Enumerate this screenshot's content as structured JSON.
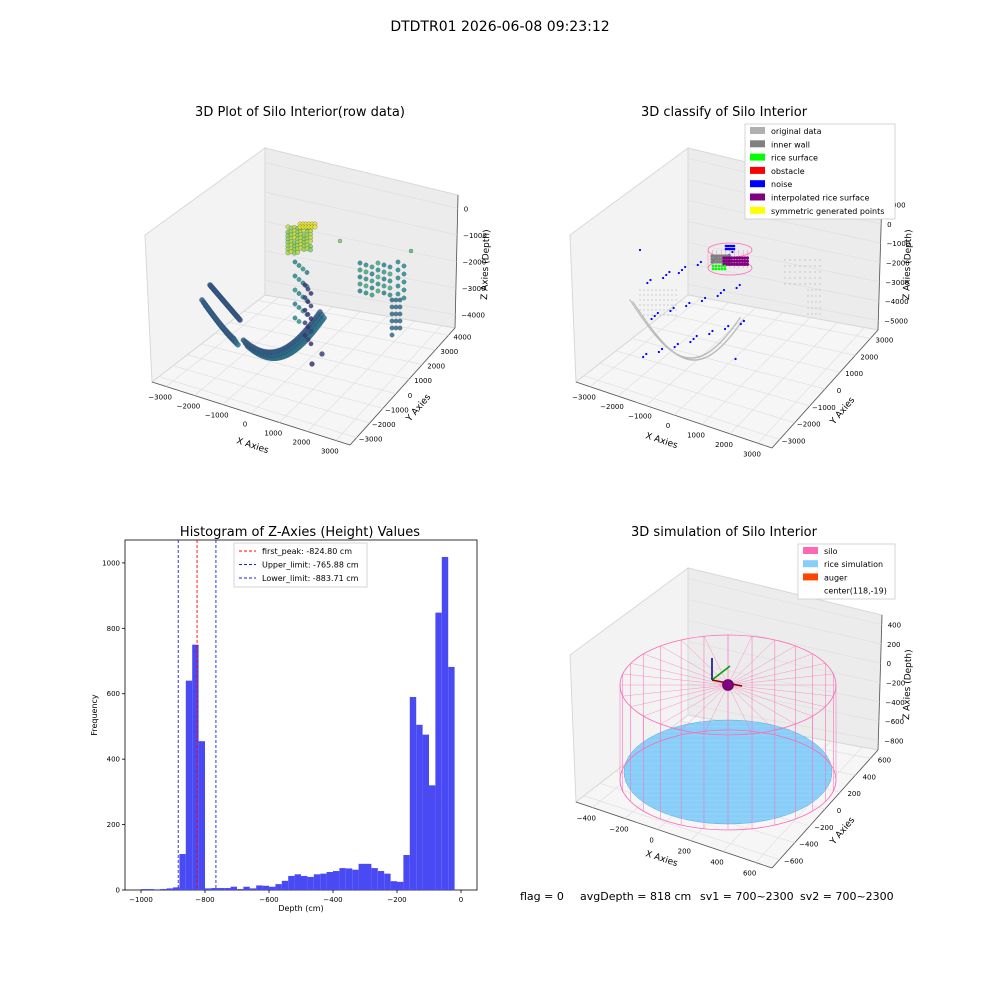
{
  "figure": {
    "suptitle": "DTDTR01 2026-06-08 09:23:12",
    "footer": {
      "flag": "flag = 0",
      "avg_depth": "avgDepth = 818 cm",
      "sv1": "sv1 = 700~2300",
      "sv2": "sv2 = 700~2300"
    }
  },
  "colors": {
    "hist_bar": "#4a4af5",
    "first_peak": "#ff0000",
    "limits": "#1f1fd0",
    "silo": "#ff69b4",
    "rice_simulation": "#87cefa",
    "auger": "#ff4500",
    "original_data": "#b0b0b0",
    "inner_wall": "#808080",
    "rice_surface": "#00ff00",
    "obstacle": "#ff0000",
    "noise": "#0000ff",
    "interpolated_rice_surface": "#800080",
    "symmetric_generated_points": "#ffff00"
  },
  "chart_data": [
    {
      "type": "scatter",
      "projection": "3d",
      "title": "3D Plot of Silo Interior(row data)",
      "xlabel": "X Axies",
      "ylabel": "Y Axies",
      "zlabel": "Z Axies (Depth)",
      "x_ticks": [
        "−3000",
        "−2000",
        "−1000",
        "0",
        "1000",
        "2000",
        "3000"
      ],
      "y_ticks": [
        "−3000",
        "−2000",
        "−1000",
        "0",
        "1000",
        "2000",
        "3000",
        "4000"
      ],
      "z_ticks": [
        "0",
        "−1000",
        "−2000",
        "−3000",
        "−4000"
      ],
      "colormap": "viridis"
    },
    {
      "type": "scatter",
      "projection": "3d",
      "title": "3D classify of Silo Interior",
      "xlabel": "X Axies",
      "ylabel": "Y Axies",
      "zlabel": "Z Axies (Depth)",
      "x_ticks": [
        "−3000",
        "−2000",
        "−1000",
        "0",
        "1000",
        "2000",
        "3000"
      ],
      "y_ticks": [
        "−3000",
        "−2000",
        "−1000",
        "0",
        "1000",
        "2000",
        "3000"
      ],
      "z_ticks": [
        "1000",
        "0",
        "−1000",
        "−2000",
        "−3000",
        "−4000",
        "−5000"
      ],
      "legend": {
        "placement": "top-right",
        "entries": [
          {
            "label": "original data",
            "color": "#b0b0b0"
          },
          {
            "label": "inner wall",
            "color": "#808080"
          },
          {
            "label": "rice surface",
            "color": "#00ff00"
          },
          {
            "label": "obstacle",
            "color": "#ff0000"
          },
          {
            "label": "noise",
            "color": "#0000ff"
          },
          {
            "label": "interpolated rice surface",
            "color": "#800080"
          },
          {
            "label": "symmetric generated points",
            "color": "#ffff00"
          }
        ]
      }
    },
    {
      "type": "bar",
      "title": "Histogram of Z-Axies (Height) Values",
      "xlabel": "Depth (cm)",
      "ylabel": "Frequency",
      "xlim": [
        -1050,
        50
      ],
      "ylim": [
        0,
        1070
      ],
      "x_ticks": [
        -1000,
        -800,
        -600,
        -400,
        -200,
        0
      ],
      "x_tick_labels": [
        "−1000",
        "−800",
        "−600",
        "−400",
        "−200",
        "0"
      ],
      "y_ticks": [
        0,
        200,
        400,
        600,
        800,
        1000
      ],
      "y_tick_labels": [
        "0",
        "200",
        "400",
        "600",
        "800",
        "1000"
      ],
      "bin_width": 20,
      "bins": [
        [
          -1000,
          3
        ],
        [
          -980,
          3
        ],
        [
          -960,
          2
        ],
        [
          -940,
          3
        ],
        [
          -920,
          5
        ],
        [
          -900,
          8
        ],
        [
          -880,
          110
        ],
        [
          -860,
          640
        ],
        [
          -840,
          750
        ],
        [
          -820,
          455
        ],
        [
          -800,
          5
        ],
        [
          -780,
          6
        ],
        [
          -760,
          6
        ],
        [
          -740,
          6
        ],
        [
          -720,
          10
        ],
        [
          -700,
          3
        ],
        [
          -680,
          10
        ],
        [
          -660,
          5
        ],
        [
          -640,
          14
        ],
        [
          -620,
          13
        ],
        [
          -600,
          10
        ],
        [
          -580,
          18
        ],
        [
          -560,
          28
        ],
        [
          -540,
          43
        ],
        [
          -520,
          48
        ],
        [
          -500,
          43
        ],
        [
          -480,
          40
        ],
        [
          -460,
          48
        ],
        [
          -440,
          50
        ],
        [
          -420,
          55
        ],
        [
          -400,
          58
        ],
        [
          -380,
          67
        ],
        [
          -360,
          66
        ],
        [
          -340,
          62
        ],
        [
          -320,
          80
        ],
        [
          -300,
          80
        ],
        [
          -280,
          67
        ],
        [
          -260,
          58
        ],
        [
          -240,
          50
        ],
        [
          -220,
          27
        ],
        [
          -200,
          25
        ],
        [
          -180,
          107
        ],
        [
          -160,
          590
        ],
        [
          -140,
          505
        ],
        [
          -120,
          475
        ],
        [
          -100,
          320
        ],
        [
          -80,
          848
        ],
        [
          -60,
          1018
        ],
        [
          -40,
          682
        ]
      ],
      "vlines": [
        {
          "x": -824.8,
          "label": "first_peak: -824.80 cm",
          "color": "#ff0000"
        },
        {
          "x": -765.88,
          "label": "Upper_limit: -765.88 cm",
          "color": "#1f1fd0"
        },
        {
          "x": -883.71,
          "label": "Lower_limit: -883.71 cm",
          "color": "#1f1fd0"
        }
      ],
      "legend": {
        "placement": "top-center"
      }
    },
    {
      "type": "scatter",
      "projection": "3d",
      "title": "3D simulation of Silo Interior",
      "xlabel": "X Axies",
      "ylabel": "Y Axies",
      "zlabel": "Z Axies (Depth)",
      "x_ticks": [
        "−400",
        "−200",
        "0",
        "200",
        "400",
        "600"
      ],
      "y_ticks": [
        "−600",
        "−400",
        "−200",
        "0",
        "200",
        "400",
        "600"
      ],
      "z_ticks": [
        "400",
        "200",
        "0",
        "−200",
        "−400",
        "−600",
        "−800"
      ],
      "legend": {
        "placement": "top-right",
        "entries": [
          {
            "label": "silo",
            "color": "#ff69b4"
          },
          {
            "label": "rice simulation",
            "color": "#87cefa"
          },
          {
            "label": "auger",
            "color": "#ff4500"
          },
          {
            "label": "center(118,-19)",
            "color": ""
          }
        ]
      }
    }
  ]
}
